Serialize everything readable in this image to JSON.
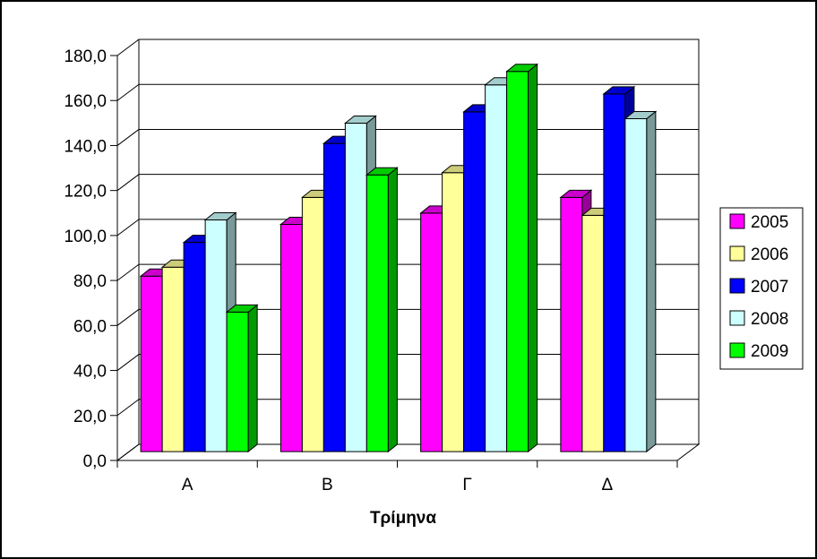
{
  "chart_data": {
    "type": "bar",
    "title": "",
    "xlabel": "Τρίμηνα",
    "ylabel": "",
    "categories": [
      "Α",
      "Β",
      "Γ",
      "Δ"
    ],
    "ylim": [
      0,
      180
    ],
    "yticks": [
      "0,0",
      "20,0",
      "40,0",
      "60,0",
      "80,0",
      "100,0",
      "120,0",
      "140,0",
      "160,0",
      "180,0"
    ],
    "grid": true,
    "legend_position": "right",
    "series": [
      {
        "name": "2005",
        "color": "#ff00ff",
        "values": [
          78,
          101,
          106,
          113
        ]
      },
      {
        "name": "2006",
        "color": "#ffff99",
        "values": [
          82,
          113,
          124,
          105
        ]
      },
      {
        "name": "2007",
        "color": "#0000ff",
        "values": [
          93,
          137,
          151,
          159
        ]
      },
      {
        "name": "2008",
        "color": "#ccffff",
        "values": [
          103,
          146,
          163,
          148
        ]
      },
      {
        "name": "2009",
        "color": "#00ff00",
        "values": [
          62,
          123,
          169,
          null
        ]
      }
    ]
  }
}
